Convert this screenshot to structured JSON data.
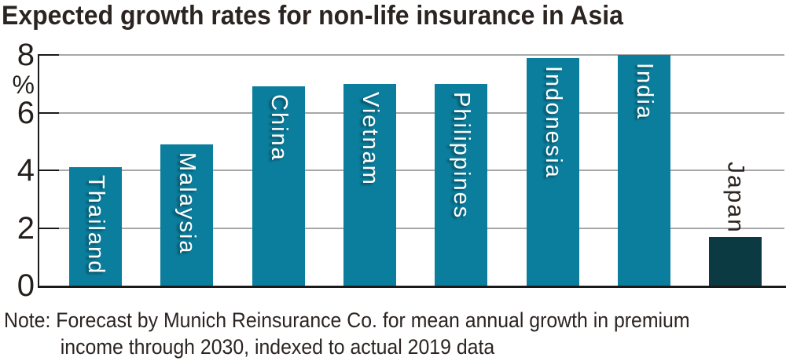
{
  "title": "Expected growth rates for non-life insurance in Asia",
  "note": {
    "line1": "Note: Forecast by Munich Reinsurance Co. for mean annual growth in premium",
    "line2": "income through 2030, indexed to actual 2019 data"
  },
  "colors": {
    "bar_teal": "#0b7e9d",
    "bar_japan_dark": "#0b3a42",
    "text": "#2b2421",
    "gridline_gray": "#a7a7a7",
    "axis_black": "#1a1a1a",
    "label_on_bar": "#ffffff"
  },
  "chart_data": {
    "type": "bar",
    "title": "Expected growth rates for non-life insurance in Asia",
    "unit_label": "%",
    "categories": [
      "Thailand",
      "Malaysia",
      "China",
      "Vietnam",
      "Philippines",
      "Indonesia",
      "India",
      "Japan"
    ],
    "values": [
      4.1,
      4.9,
      6.9,
      7.0,
      7.0,
      7.9,
      8.0,
      1.7
    ],
    "highlight_category": "Japan",
    "highlight_label_position": "above-bar",
    "yticks": [
      0,
      2,
      4,
      6,
      8
    ],
    "ytick_labels": [
      "0",
      "2",
      "4",
      "6",
      "8"
    ],
    "ylim": [
      0,
      8
    ],
    "ylabel": "%",
    "xlabel": "",
    "grid": "horizontal",
    "legend": "none"
  }
}
